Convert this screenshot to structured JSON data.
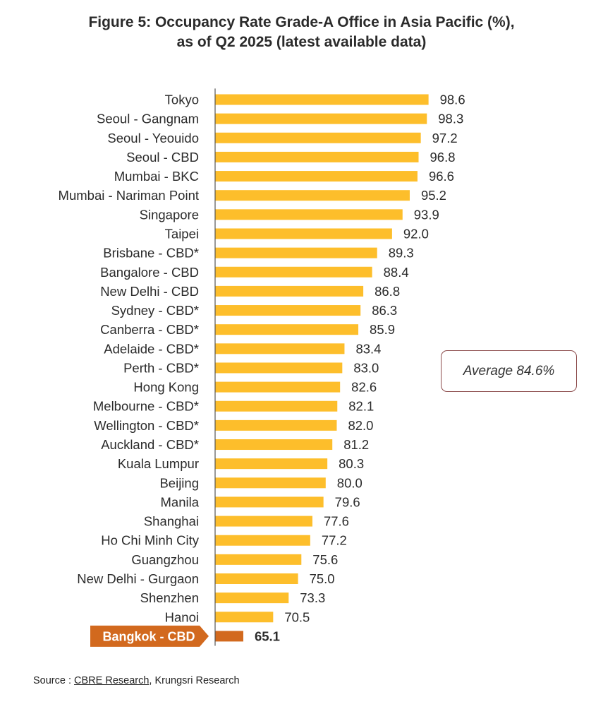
{
  "title_line1": "Figure 5: Occupancy Rate Grade-A Office in Asia Pacific (%),",
  "title_line2": "as of Q2 2025 (latest available data)",
  "chart_data": {
    "type": "bar",
    "orientation": "horizontal",
    "categories": [
      "Tokyo",
      "Seoul - Gangnam",
      "Seoul - Yeouido",
      "Seoul - CBD",
      "Mumbai - BKC",
      "Mumbai - Nariman Point",
      "Singapore",
      "Taipei",
      "Brisbane - CBD*",
      "Bangalore - CBD",
      "New Delhi - CBD",
      "Sydney - CBD*",
      "Canberra - CBD*",
      "Adelaide - CBD*",
      "Perth - CBD*",
      "Hong Kong",
      "Melbourne - CBD*",
      "Wellington - CBD*",
      "Auckland - CBD*",
      "Kuala Lumpur",
      "Beijing",
      "Manila",
      "Shanghai",
      "Ho Chi Minh City",
      "Guangzhou",
      "New Delhi - Gurgaon",
      "Shenzhen",
      "Hanoi",
      "Bangkok - CBD"
    ],
    "values": [
      98.6,
      98.3,
      97.2,
      96.8,
      96.6,
      95.2,
      93.9,
      92.0,
      89.3,
      88.4,
      86.8,
      86.3,
      85.9,
      83.4,
      83.0,
      82.6,
      82.1,
      82.0,
      81.2,
      80.3,
      80.0,
      79.6,
      77.6,
      77.2,
      75.6,
      75.0,
      73.3,
      70.5,
      65.1
    ],
    "value_labels": [
      "98.6",
      "98.3",
      "97.2",
      "96.8",
      "96.6",
      "95.2",
      "93.9",
      "92.0",
      "89.3",
      "88.4",
      "86.8",
      "86.3",
      "85.9",
      "83.4",
      "83.0",
      "82.6",
      "82.1",
      "82.0",
      "81.2",
      "80.3",
      "80.0",
      "79.6",
      "77.6",
      "77.2",
      "75.6",
      "75.0",
      "73.3",
      "70.5",
      "65.1"
    ],
    "highlight": "Bangkok - CBD",
    "xlim": [
      60,
      100
    ],
    "colors": {
      "bar": "#FDBE2B",
      "highlight": "#D2691E",
      "axis": "#555555",
      "text": "#2b2b2b"
    },
    "annotation": "Average 84.6%"
  },
  "source": {
    "prefix": "Source : ",
    "link": "CBRE Research",
    "rest": ", Krungsri Research"
  }
}
